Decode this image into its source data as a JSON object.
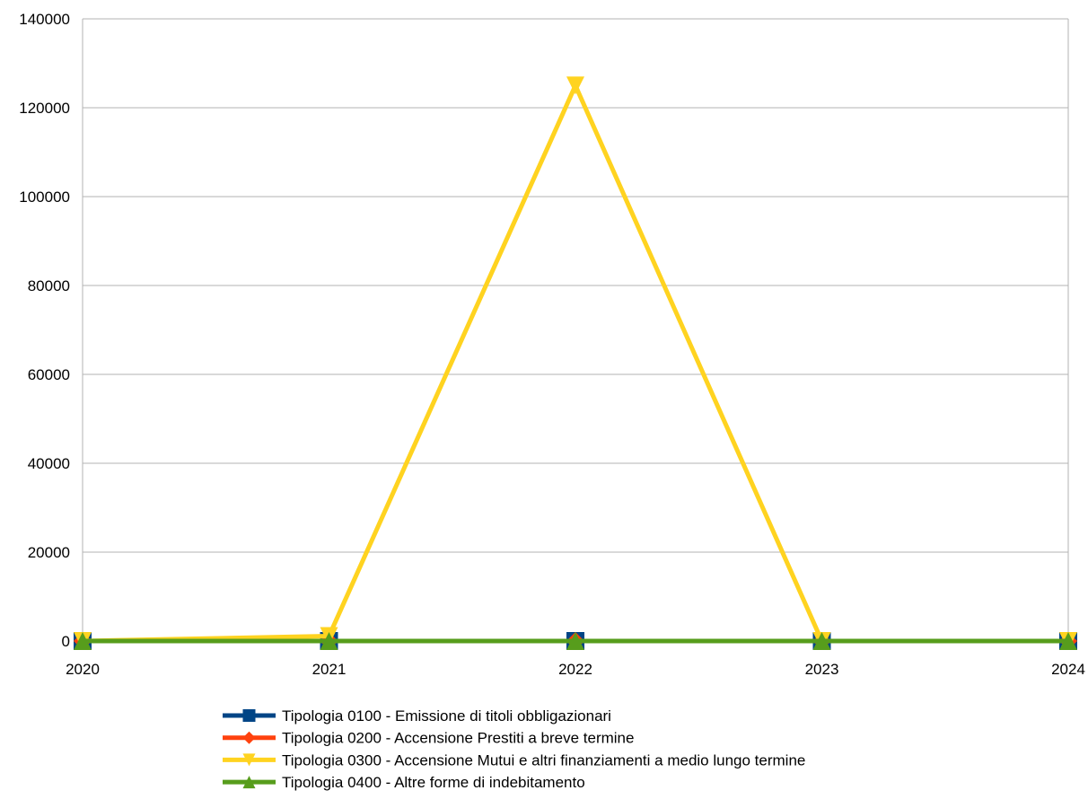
{
  "chart_data": {
    "type": "line",
    "title": "",
    "xlabel": "",
    "ylabel": "",
    "x": [
      "2020",
      "2021",
      "2022",
      "2023",
      "2024"
    ],
    "ylim": [
      0,
      140000
    ],
    "yticks": [
      0,
      20000,
      40000,
      60000,
      80000,
      100000,
      120000,
      140000
    ],
    "grid": true,
    "legend_position": "bottom",
    "series": [
      {
        "name": "Tipologia 0100 - Emissione di titoli obbligazionari",
        "values": [
          0,
          0,
          0,
          0,
          0
        ],
        "color": "#004586",
        "marker": "square"
      },
      {
        "name": "Tipologia 0200 - Accensione Prestiti a breve termine",
        "values": [
          0,
          0,
          0,
          0,
          0
        ],
        "color": "#ff420e",
        "marker": "diamond"
      },
      {
        "name": "Tipologia 0300 - Accensione Mutui e altri finanziamenti a medio lungo termine",
        "values": [
          0,
          1100,
          125000,
          0,
          0
        ],
        "color": "#ffd320",
        "marker": "triangle-down"
      },
      {
        "name": "Tipologia 0400 - Altre forme di indebitamento",
        "values": [
          0,
          0,
          0,
          0,
          0
        ],
        "color": "#579d1c",
        "marker": "triangle-up"
      }
    ]
  }
}
